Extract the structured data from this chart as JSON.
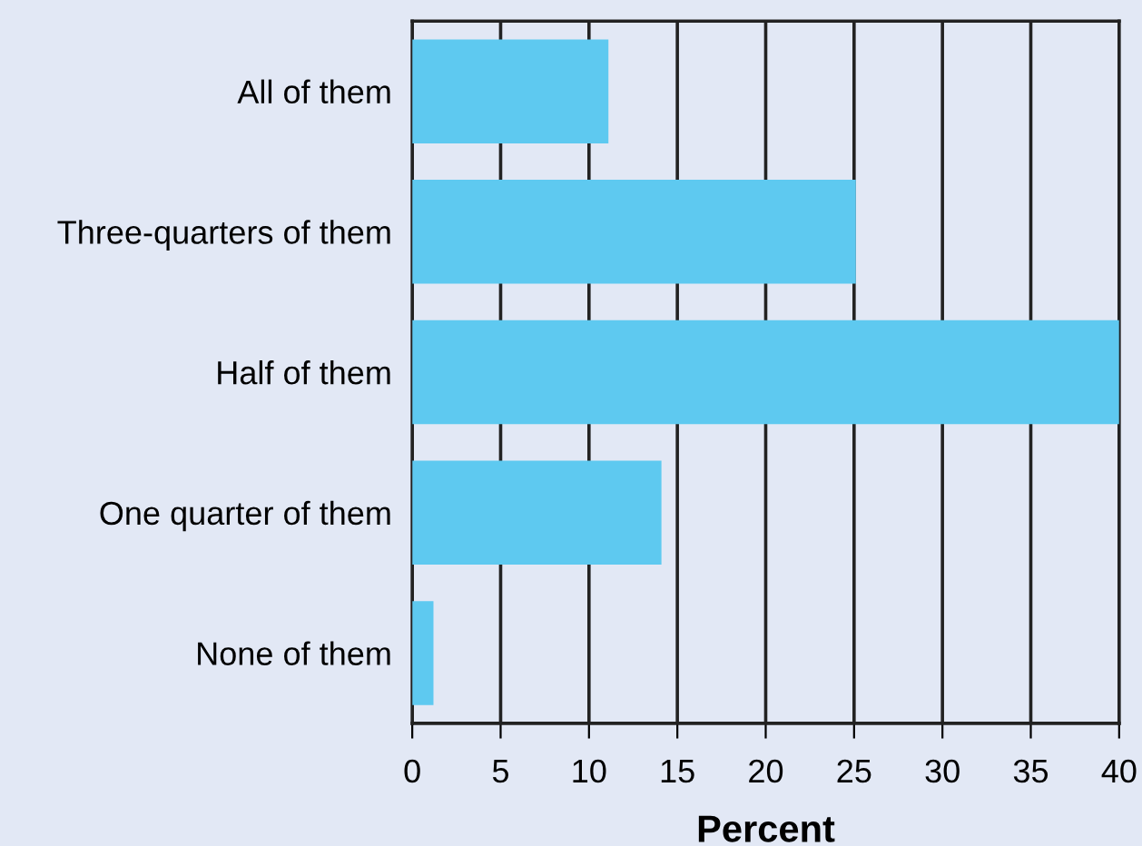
{
  "chart_data": {
    "type": "bar",
    "orientation": "horizontal",
    "xlabel": "Percent",
    "categories": [
      "All of them",
      "Three-quarters of them",
      "Half of them",
      "One quarter of them",
      "None of them"
    ],
    "values": [
      11.1,
      25.1,
      40,
      14.1,
      1.2
    ],
    "color": "#5ec9f0",
    "xlim": [
      0,
      40
    ],
    "xticks": [
      0,
      5,
      10,
      15,
      20,
      25,
      30,
      35,
      40
    ],
    "grid": "x"
  }
}
